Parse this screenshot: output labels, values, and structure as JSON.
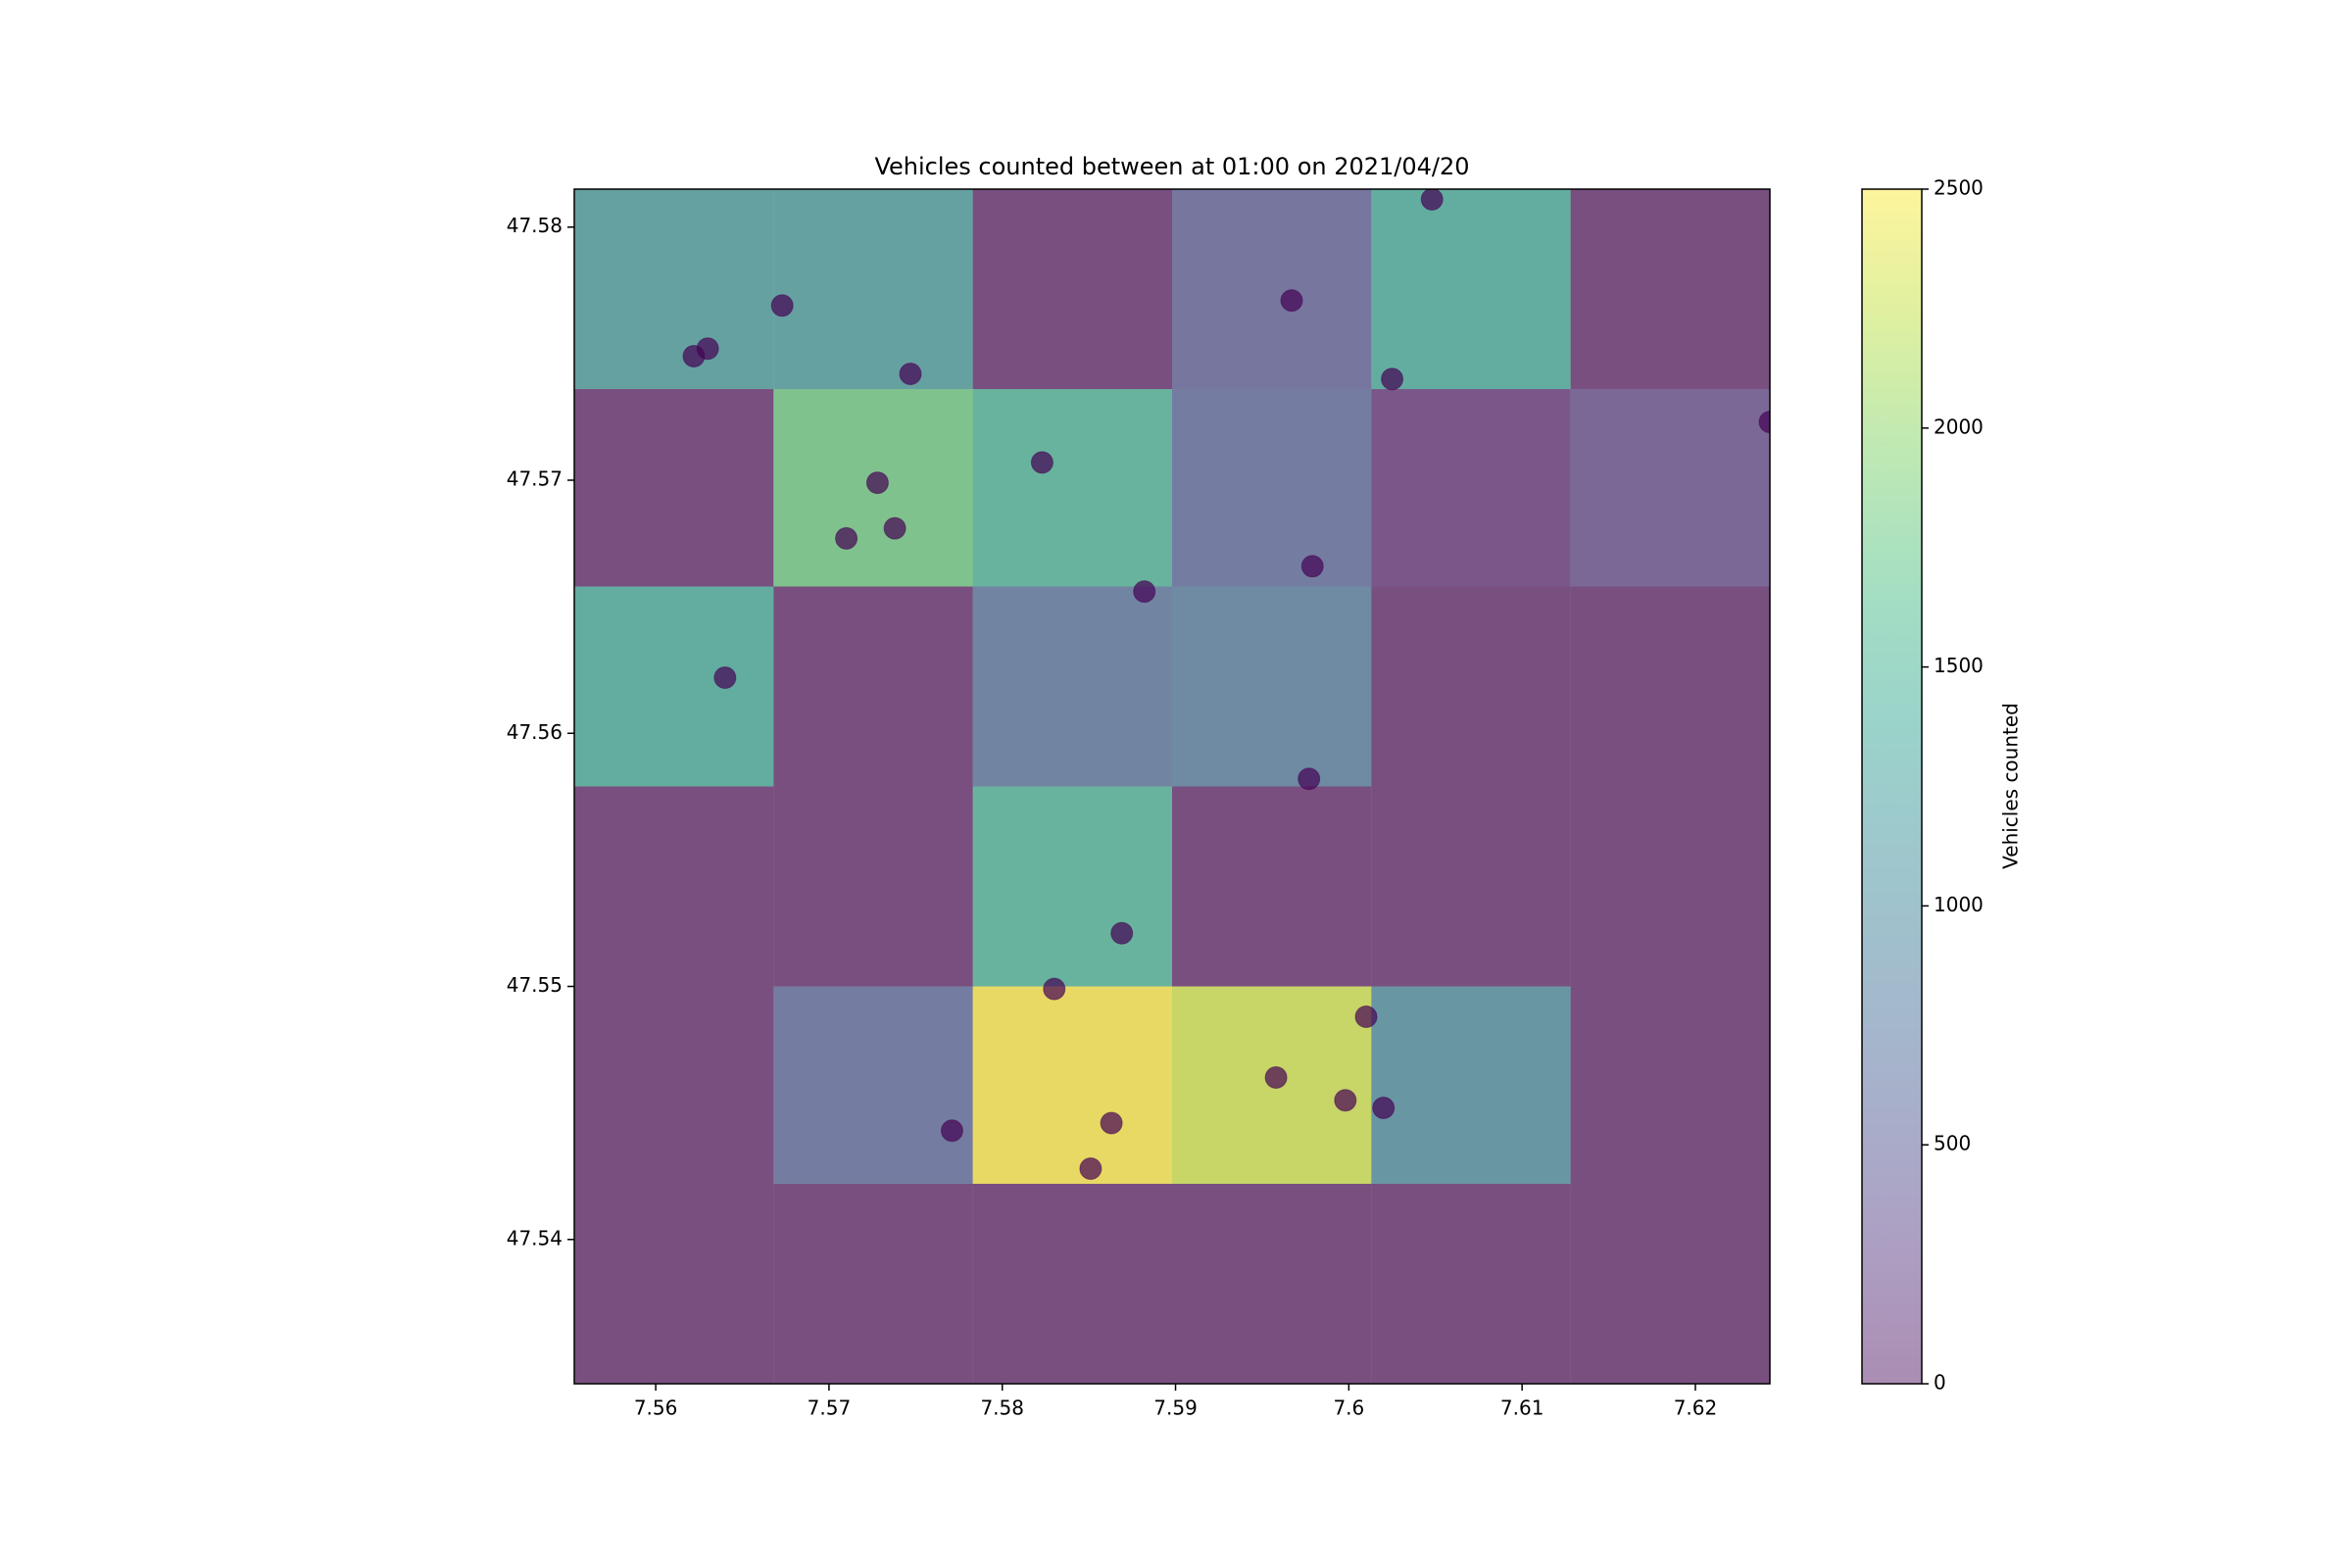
{
  "chart_data": {
    "type": "heatmap",
    "title": "Vehicles counted between at 01:00 on 2021/04/20",
    "colorbar_label": "Vehicles counted",
    "colormap": "viridis",
    "alpha": 0.6,
    "x_edges": [
      7.5553,
      7.5668,
      7.5783,
      7.5898,
      7.6013,
      7.6128,
      7.6243
    ],
    "y_edges": [
      47.5343,
      47.5422,
      47.55,
      47.5579,
      47.5658,
      47.5736,
      47.5815
    ],
    "values": [
      [
        0,
        0,
        0,
        0,
        0,
        0
      ],
      [
        0,
        600,
        2500,
        2300,
        1000,
        0
      ],
      [
        0,
        0,
        1500,
        0,
        0,
        0
      ],
      [
        1400,
        0,
        700,
        800,
        0,
        0
      ],
      [
        0,
        1800,
        1500,
        600,
        100,
        300
      ],
      [
        1200,
        1200,
        0,
        500,
        1400,
        0
      ]
    ],
    "clim": [
      0,
      2500
    ],
    "cticks": [
      0,
      500,
      1000,
      1500,
      2000,
      2500
    ],
    "xlim": [
      7.5553,
      7.6243
    ],
    "ylim": [
      47.5343,
      47.5815
    ],
    "xticks": [
      7.56,
      7.57,
      7.58,
      7.59,
      7.6,
      7.61,
      7.62
    ],
    "yticks": [
      47.54,
      47.55,
      47.56,
      47.57,
      47.58
    ],
    "points": {
      "color": "#440154",
      "x": [
        7.6048,
        7.5673,
        7.563,
        7.5622,
        7.5747,
        7.5967,
        7.6025,
        7.6243,
        7.5823,
        7.5728,
        7.571,
        7.5738,
        7.5882,
        7.5979,
        7.564,
        7.5977,
        7.5869,
        7.583,
        7.601,
        7.5958,
        7.5998,
        7.602,
        7.5771,
        7.5863,
        7.5851
      ],
      "y": [
        47.5811,
        47.5769,
        47.5752,
        47.5749,
        47.5742,
        47.5771,
        47.574,
        47.5723,
        47.5707,
        47.5699,
        47.5677,
        47.5681,
        47.5656,
        47.5666,
        47.5622,
        47.5582,
        47.5521,
        47.5499,
        47.5488,
        47.5464,
        47.5455,
        47.5452,
        47.5443,
        47.5446,
        47.5428
      ]
    }
  }
}
